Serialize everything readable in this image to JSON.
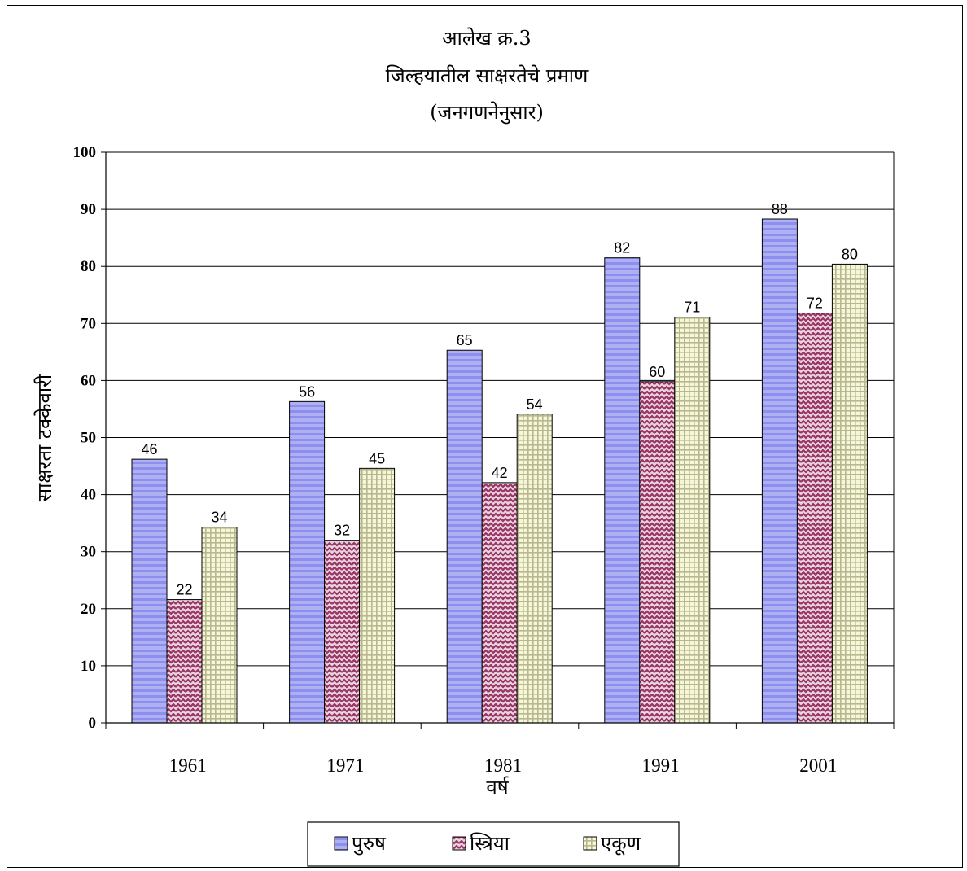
{
  "chart_data": {
    "type": "bar",
    "title_lines": [
      "आलेख क्र.3",
      "जिल्हयातील साक्षरतेचे प्रमाण",
      "(जनगणनेनुसार)"
    ],
    "xlabel": "वर्ष",
    "ylabel": "साक्षरता टक्केवारी",
    "categories": [
      "1961",
      "1971",
      "1981",
      "1991",
      "2001"
    ],
    "ylim": [
      0,
      100
    ],
    "yticks": [
      "0",
      "10",
      "20",
      "30",
      "40",
      "50",
      "60",
      "70",
      "80",
      "90",
      "100"
    ],
    "series": [
      {
        "name": "पुरुष",
        "values": [
          46.2,
          56.3,
          65.3,
          81.5,
          88.3
        ],
        "labels": [
          "46",
          "56",
          "65",
          "82",
          "88"
        ],
        "color": "#9999ff",
        "pattern": "stripes"
      },
      {
        "name": "स्त्रिया",
        "values": [
          21.6,
          32.0,
          42.1,
          59.8,
          71.8
        ],
        "labels": [
          "22",
          "32",
          "42",
          "60",
          "72"
        ],
        "color": "#993366",
        "pattern": "zigzag"
      },
      {
        "name": "एकूण",
        "values": [
          34.3,
          44.6,
          54.1,
          71.1,
          80.4
        ],
        "labels": [
          "34",
          "45",
          "54",
          "71",
          "80"
        ],
        "color": "#ffffcc",
        "pattern": "grid"
      }
    ],
    "grid": true,
    "legend": "bottom"
  }
}
